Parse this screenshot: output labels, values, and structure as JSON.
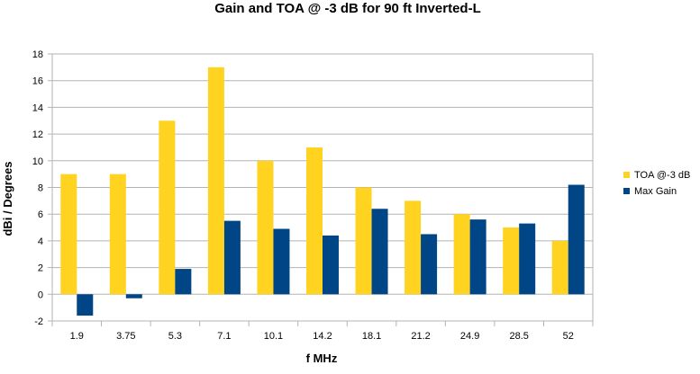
{
  "chart_data": {
    "type": "bar",
    "title": "Gain and TOA @ -3 dB for 90 ft Inverted-L",
    "xlabel": "f MHz",
    "ylabel": "dBi / Degrees",
    "categories": [
      "1.9",
      "3.75",
      "5.3",
      "7.1",
      "10.1",
      "14.2",
      "18.1",
      "21.2",
      "24.9",
      "28.5",
      "52"
    ],
    "series": [
      {
        "name": "TOA @-3 dB",
        "color": "#ffd320",
        "values": [
          9,
          9,
          13,
          17,
          10,
          11,
          8,
          7,
          6,
          5,
          4
        ]
      },
      {
        "name": "Max Gain",
        "color": "#004586",
        "values": [
          -1.6,
          -0.3,
          1.9,
          5.5,
          4.9,
          4.4,
          6.4,
          4.5,
          5.6,
          5.3,
          8.2
        ]
      }
    ],
    "ylim": [
      -2,
      18
    ],
    "yticks": [
      -2,
      0,
      2,
      4,
      6,
      8,
      10,
      12,
      14,
      16,
      18
    ],
    "grid": true,
    "legend_position": "right"
  }
}
